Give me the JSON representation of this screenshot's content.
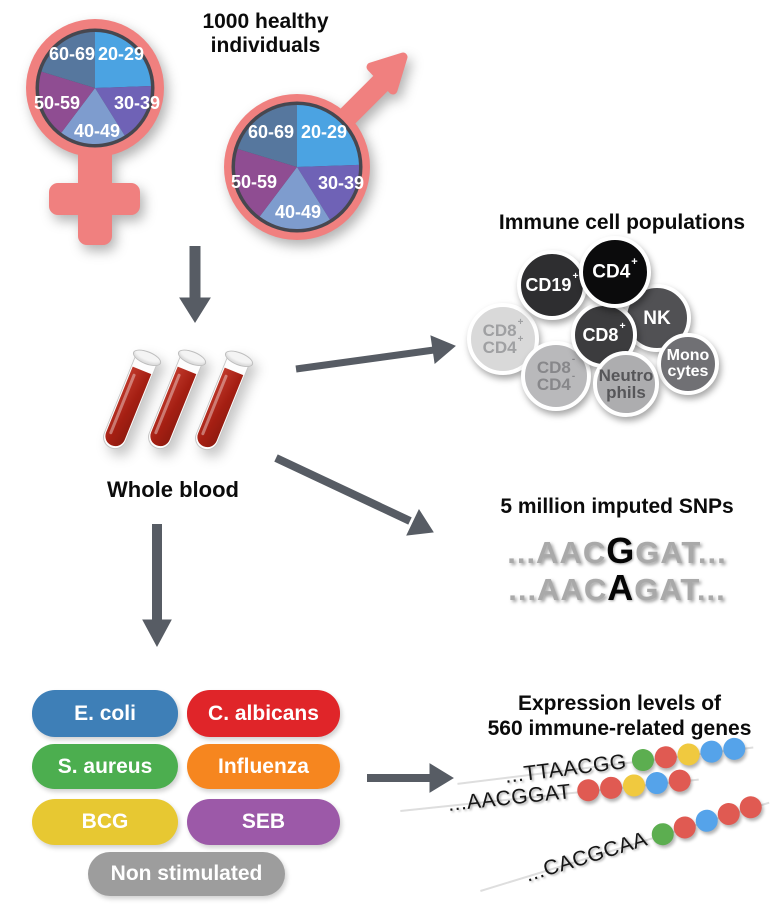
{
  "cohort": {
    "title": "1000 healthy\nindividuals",
    "age_groups": [
      "20-29",
      "30-39",
      "40-49",
      "50-59",
      "60-69"
    ],
    "symbol_color": "#F0807F",
    "pie_colors": {
      "age_20_29": "#4BA3E2",
      "age_30_39": "#6F62B6",
      "age_40_49": "#7E9CCE",
      "age_50_59": "#8F4D92",
      "age_60_69": "#56779E"
    }
  },
  "whole_blood": {
    "label": "Whole blood",
    "tube_color": "#A51F13"
  },
  "immune_cells": {
    "title": "Immune cell populations",
    "cells": [
      {
        "name": "CD8+CD4+",
        "l1": "CD8",
        "s1": "+",
        "l2": "CD4",
        "s2": "+",
        "color": "#D9D9D9",
        "text_color": "#9FA0A2"
      },
      {
        "name": "CD19+",
        "l1": "CD19",
        "s1": "+",
        "color": "#2E2E30",
        "text_color": "#FFFFFF"
      },
      {
        "name": "NK",
        "l1": "NK",
        "color": "#515154",
        "text_color": "#FFFFFF"
      },
      {
        "name": "CD8+",
        "l1": "CD8",
        "s1": "+",
        "color": "#3C3C3E",
        "text_color": "#FFFFFF"
      },
      {
        "name": "CD8-CD4-",
        "l1": "CD8",
        "s1": "-",
        "l2": "CD4",
        "s2": "-",
        "color": "#B9B9BB",
        "text_color": "#87878A"
      },
      {
        "name": "Neutrophils",
        "l1": "Neutro",
        "l2": "phils",
        "color": "#ADADAF",
        "text_color": "#565659"
      },
      {
        "name": "Monocytes",
        "l1": "Mono",
        "l2": "cytes",
        "color": "#707074",
        "text_color": "#FFFFFF"
      },
      {
        "name": "CD4+",
        "l1": "CD4",
        "s1": "+",
        "color": "#0B0B0C",
        "text_color": "#FFFFFF"
      }
    ]
  },
  "snps": {
    "title": "5 million imputed SNPs",
    "lines": [
      {
        "prefix": "...AAC",
        "variant": "G",
        "suffix": "GAT..."
      },
      {
        "prefix": "...AAC",
        "variant": "A",
        "suffix": "GAT..."
      }
    ]
  },
  "stimulations": {
    "items": [
      {
        "label": "E. coli",
        "color": "#3E7FB7"
      },
      {
        "label": "C. albicans",
        "color": "#E02529"
      },
      {
        "label": "S. aureus",
        "color": "#4CAE4F"
      },
      {
        "label": "Influenza",
        "color": "#F6861F"
      },
      {
        "label": "BCG",
        "color": "#E7C832"
      },
      {
        "label": "SEB",
        "color": "#9C59A8"
      },
      {
        "label": "Non stimulated",
        "color": "#9D9D9D"
      }
    ]
  },
  "expression": {
    "title": "Expression levels of\n560 immune-related genes",
    "rows": [
      {
        "sequence": "...TTAACGG",
        "dots": [
          "green",
          "red",
          "yellow",
          "blue",
          "blue"
        ]
      },
      {
        "sequence": "...AACGGAT",
        "dots": [
          "red",
          "red",
          "yellow",
          "blue",
          "red"
        ]
      },
      {
        "sequence": "...CACGCAA",
        "dots": [
          "green",
          "red",
          "blue",
          "red",
          "red"
        ]
      }
    ],
    "dot_colors": {
      "green": "#5CAE50",
      "red": "#E05A52",
      "yellow": "#F0C93F",
      "blue": "#55A3EA"
    }
  },
  "arrow_color": "#575C64"
}
